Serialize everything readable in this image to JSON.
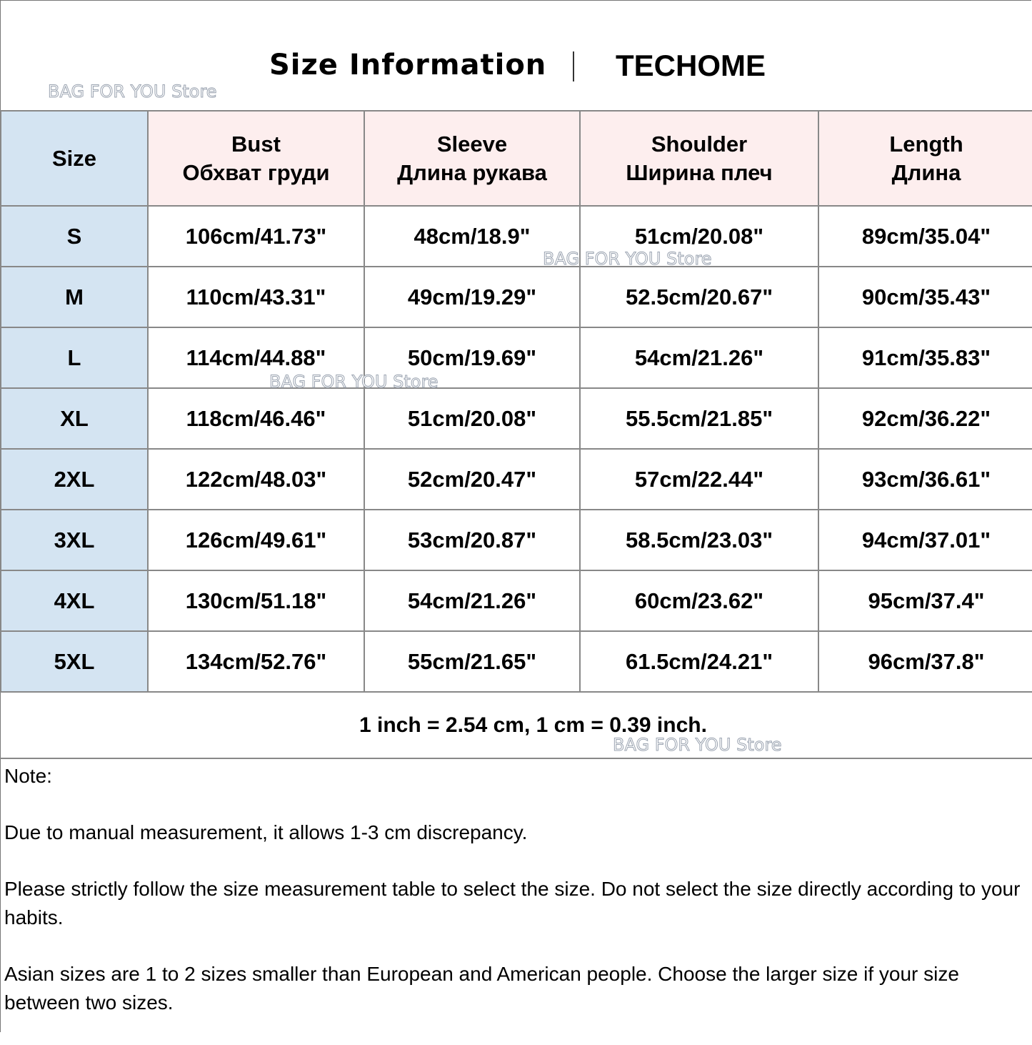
{
  "header": {
    "title": "Size Information",
    "brand": "TECHOME"
  },
  "watermark": "BAG FOR YOU Store",
  "table": {
    "columns": [
      {
        "en": "Size",
        "ru": ""
      },
      {
        "en": "Bust",
        "ru": "Обхват груди"
      },
      {
        "en": "Sleeve",
        "ru": "Длина рукава"
      },
      {
        "en": "Shoulder",
        "ru": "Ширина плеч"
      },
      {
        "en": "Length",
        "ru": "Длина"
      }
    ],
    "rows": [
      [
        "S",
        "106cm/41.73\"",
        "48cm/18.9\"",
        "51cm/20.08\"",
        "89cm/35.04\""
      ],
      [
        "M",
        "110cm/43.31\"",
        "49cm/19.29\"",
        "52.5cm/20.67\"",
        "90cm/35.43\""
      ],
      [
        "L",
        "114cm/44.88\"",
        "50cm/19.69\"",
        "54cm/21.26\"",
        "91cm/35.83\""
      ],
      [
        "XL",
        "118cm/46.46\"",
        "51cm/20.08\"",
        "55.5cm/21.85\"",
        "92cm/36.22\""
      ],
      [
        "2XL",
        "122cm/48.03\"",
        "52cm/20.47\"",
        "57cm/22.44\"",
        "93cm/36.61\""
      ],
      [
        "3XL",
        "126cm/49.61\"",
        "53cm/20.87\"",
        "58.5cm/23.03\"",
        "94cm/37.01\""
      ],
      [
        "4XL",
        "130cm/51.18\"",
        "54cm/21.26\"",
        "60cm/23.62\"",
        "95cm/37.4\""
      ],
      [
        "5XL",
        "134cm/52.76\"",
        "55cm/21.65\"",
        "61.5cm/24.21\"",
        "96cm/37.8\""
      ]
    ]
  },
  "conversion": "1 inch = 2.54 cm, 1 cm = 0.39 inch.",
  "notes": [
    "Note:",
    "Due to manual measurement, it allows 1-3 cm discrepancy.",
    "Please strictly follow the size measurement table to select the size. Do not select the size directly according to your habits.",
    "Asian sizes are 1 to 2 sizes smaller than European and American people. Choose the larger size if your size between two sizes."
  ],
  "colors": {
    "size_column": "#d4e4f2",
    "header_row": "#fdeeee",
    "grid": "#888888"
  }
}
